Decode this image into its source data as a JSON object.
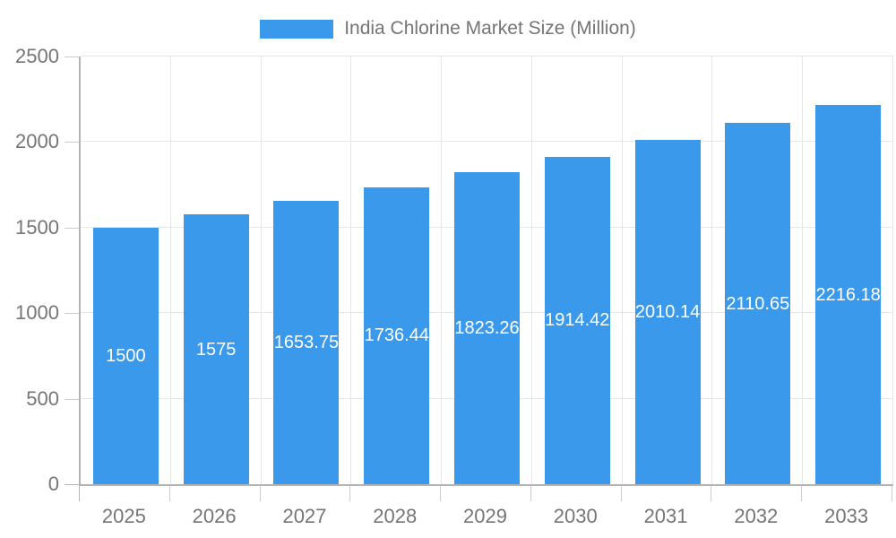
{
  "legend": {
    "label": "India Chlorine Market Size (Million)"
  },
  "colors": {
    "bar": "#3B99EC",
    "grid": "#E6E6E6",
    "axis": "#B3B3B3",
    "tick_stub": "#CCCCCC",
    "tick_text": "#757575",
    "bar_label_text": "#FFFFFF"
  },
  "chart_data": {
    "type": "bar",
    "title": "India Chlorine Market Size (Million)",
    "categories": [
      "2025",
      "2026",
      "2027",
      "2028",
      "2029",
      "2030",
      "2031",
      "2032",
      "2033"
    ],
    "values": [
      1500,
      1575,
      1653.75,
      1736.44,
      1823.26,
      1914.42,
      2010.14,
      2110.65,
      2216.18
    ],
    "value_labels": [
      "1500",
      "1575",
      "1653.75",
      "1736.44",
      "1823.26",
      "1914.42",
      "2010.14",
      "2110.65",
      "2216.18"
    ],
    "xlabel": "",
    "ylabel": "",
    "ylim": [
      0,
      2500
    ],
    "yticks": [
      0,
      500,
      1000,
      1500,
      2000,
      2500
    ],
    "grid": true,
    "legend_position": "top",
    "series_name": "India Chlorine Market Size (Million)"
  }
}
